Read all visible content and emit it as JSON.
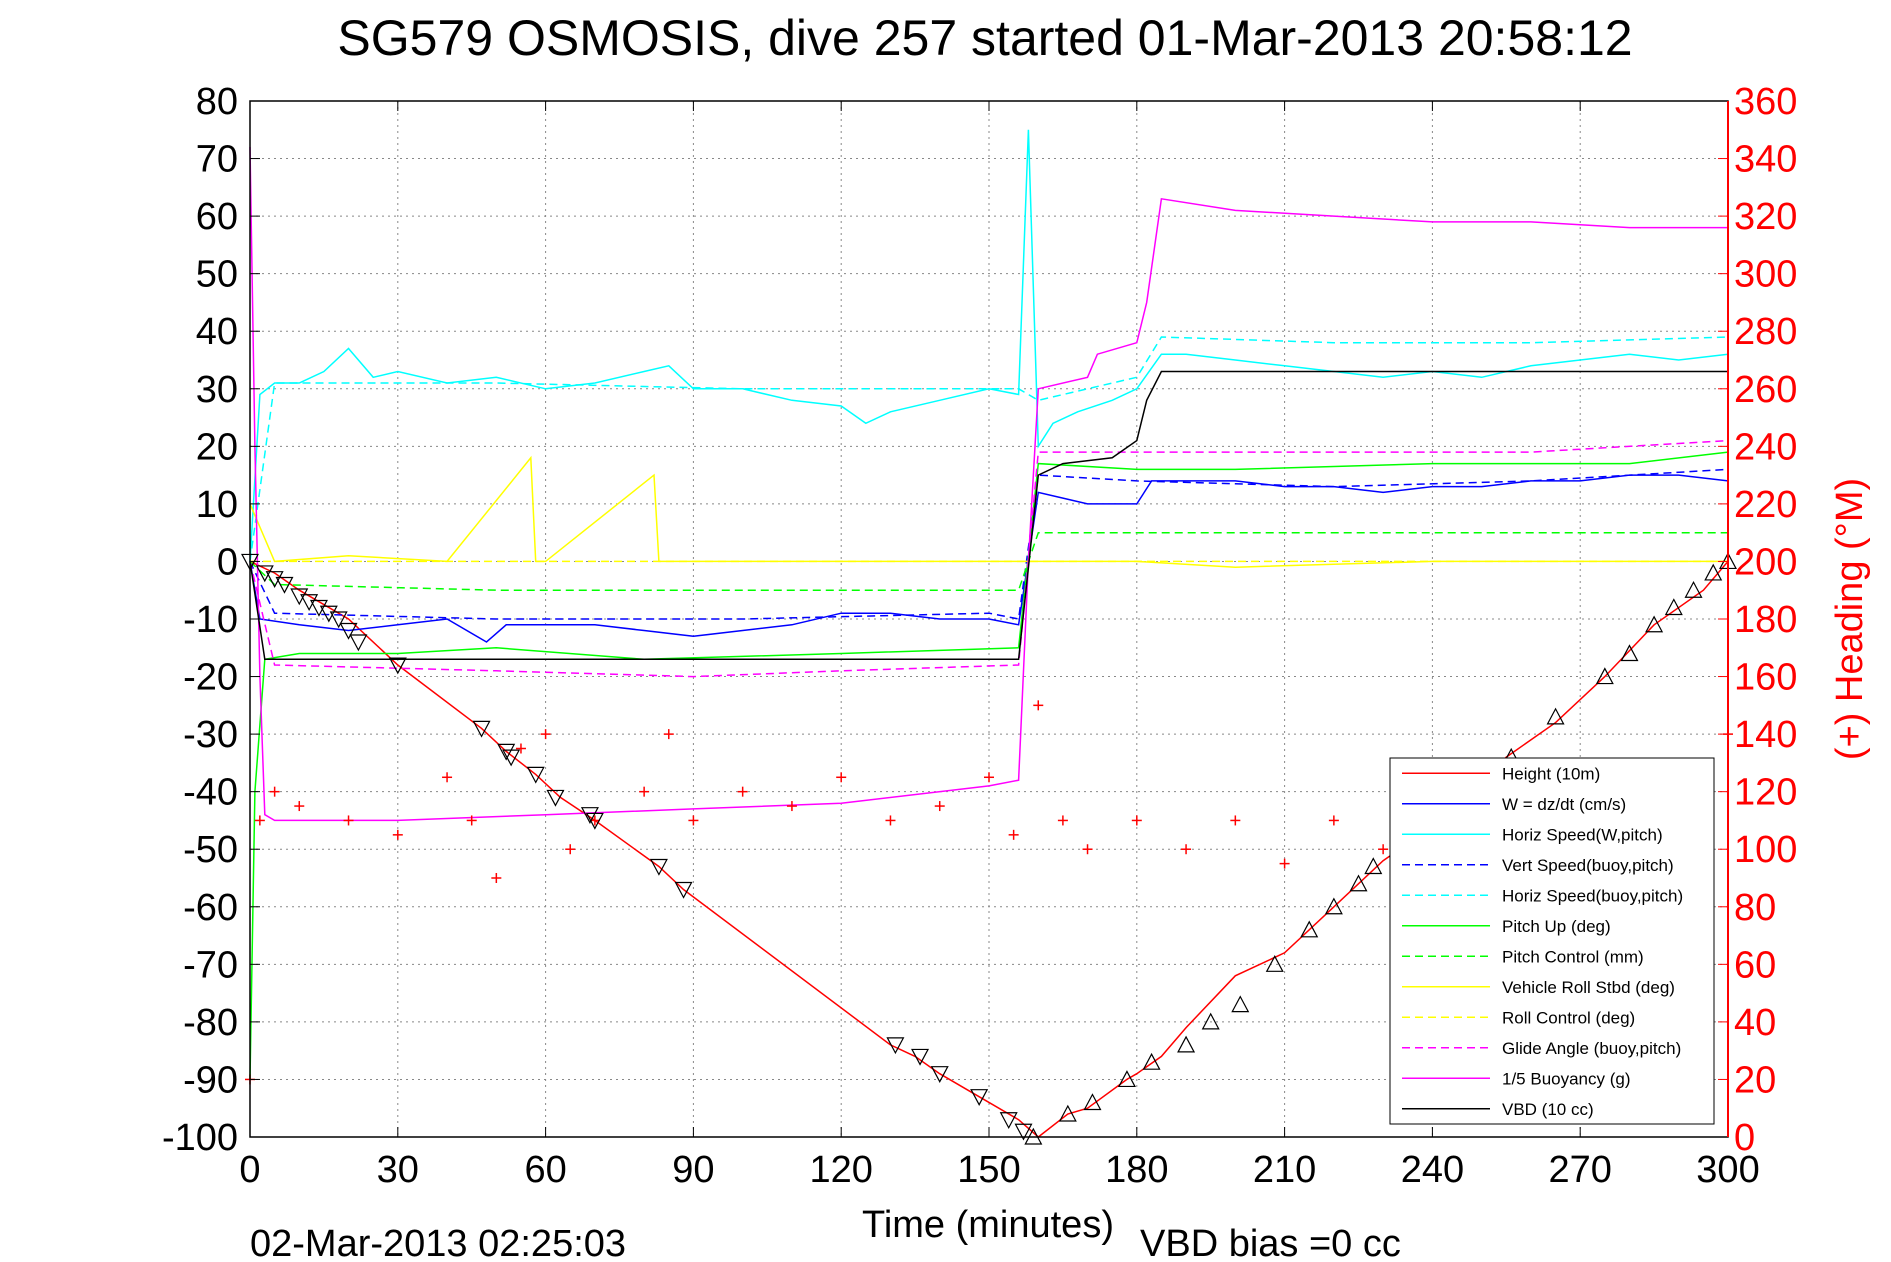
{
  "chart_data": {
    "type": "line",
    "title": "SG579 OSMOSIS, dive 257 started 01-Mar-2013 20:58:12",
    "xlabel": "Time (minutes)",
    "ylabel_right": "(+) Heading (°M)",
    "footer_left": "02-Mar-2013 02:25:03",
    "footer_right": "VBD bias =0 cc",
    "xlim": [
      0,
      300
    ],
    "ylim": [
      -100,
      80
    ],
    "ylim_right": [
      0,
      360
    ],
    "xticks": [
      0,
      30,
      60,
      90,
      120,
      150,
      180,
      210,
      240,
      270,
      300
    ],
    "yticks": [
      -100,
      -90,
      -80,
      -70,
      -60,
      -50,
      -40,
      -30,
      -20,
      -10,
      0,
      10,
      20,
      30,
      40,
      50,
      60,
      70,
      80
    ],
    "yticks_right": [
      0,
      20,
      40,
      60,
      80,
      100,
      120,
      140,
      160,
      180,
      200,
      220,
      240,
      260,
      280,
      300,
      320,
      340,
      360
    ],
    "grid": true,
    "legend_position": "lower-right",
    "series": [
      {
        "name": "Height (10m)",
        "color": "#ff0000",
        "style": "solid",
        "x": [
          0,
          5,
          10,
          20,
          30,
          47,
          52,
          58,
          63,
          70,
          83,
          88,
          130,
          135,
          140,
          148,
          156,
          160,
          166,
          170,
          178,
          180,
          185,
          190,
          200,
          210,
          220,
          230,
          240,
          255,
          265,
          275,
          285,
          295,
          300
        ],
        "y": [
          0,
          -2,
          -5,
          -10,
          -18,
          -29,
          -33,
          -37,
          -41,
          -45,
          -53,
          -57,
          -84,
          -86,
          -89,
          -93,
          -97,
          -100,
          -96,
          -95,
          -90,
          -89,
          -86,
          -81,
          -72,
          -68,
          -60,
          -52,
          -46,
          -34,
          -28,
          -20,
          -11,
          -5,
          0
        ]
      },
      {
        "name": "W = dz/dt (cm/s)",
        "color": "#0000ff",
        "style": "solid",
        "x": [
          0,
          2,
          10,
          20,
          30,
          40,
          48,
          52,
          60,
          70,
          80,
          90,
          100,
          110,
          120,
          130,
          140,
          150,
          156,
          160,
          165,
          170,
          180,
          183,
          190,
          200,
          210,
          220,
          230,
          240,
          250,
          260,
          270,
          280,
          290,
          300
        ],
        "y": [
          0,
          -10,
          -11,
          -12,
          -11,
          -10,
          -14,
          -11,
          -11,
          -11,
          -12,
          -13,
          -12,
          -11,
          -9,
          -9,
          -10,
          -10,
          -11,
          12,
          11,
          10,
          10,
          14,
          14,
          14,
          13,
          13,
          12,
          13,
          13,
          14,
          14,
          15,
          15,
          14
        ]
      },
      {
        "name": "Horiz Speed(W,pitch)",
        "color": "#00ffff",
        "style": "solid",
        "x": [
          0,
          2,
          5,
          10,
          15,
          20,
          25,
          30,
          40,
          50,
          60,
          70,
          80,
          85,
          90,
          100,
          110,
          120,
          125,
          130,
          140,
          150,
          156,
          158,
          160,
          163,
          168,
          175,
          180,
          185,
          190,
          200,
          210,
          220,
          230,
          240,
          250,
          260,
          270,
          280,
          290,
          300
        ],
        "y": [
          0,
          29,
          31,
          31,
          33,
          37,
          32,
          33,
          31,
          32,
          30,
          31,
          33,
          34,
          30,
          30,
          28,
          27,
          24,
          26,
          28,
          30,
          29,
          75,
          20,
          24,
          26,
          28,
          30,
          36,
          36,
          35,
          34,
          33,
          32,
          33,
          32,
          34,
          35,
          36,
          35,
          36
        ]
      },
      {
        "name": "Vert Speed(buoy,pitch)",
        "color": "#0000ff",
        "style": "dashed",
        "x": [
          0,
          5,
          50,
          100,
          150,
          156,
          160,
          180,
          220,
          260,
          300
        ],
        "y": [
          0,
          -9,
          -10,
          -10,
          -9,
          -10,
          15,
          14,
          13,
          14,
          16
        ]
      },
      {
        "name": "Horiz Speed(buoy,pitch)",
        "color": "#00ffff",
        "style": "dashed",
        "x": [
          0,
          5,
          50,
          100,
          150,
          156,
          160,
          180,
          185,
          220,
          260,
          300
        ],
        "y": [
          0,
          31,
          31,
          30,
          30,
          30,
          28,
          32,
          39,
          38,
          38,
          39
        ]
      },
      {
        "name": "Pitch Up (deg)",
        "color": "#00ff00",
        "style": "solid",
        "x": [
          0,
          1,
          3,
          10,
          30,
          50,
          80,
          120,
          156,
          160,
          180,
          200,
          240,
          280,
          300
        ],
        "y": [
          -90,
          -40,
          -17,
          -16,
          -16,
          -15,
          -17,
          -16,
          -15,
          17,
          16,
          16,
          17,
          17,
          19
        ]
      },
      {
        "name": "Pitch Control (mm)",
        "color": "#00ff00",
        "style": "dashed",
        "x": [
          0,
          5,
          50,
          100,
          156,
          160,
          180,
          200,
          240,
          300
        ],
        "y": [
          0,
          -4,
          -5,
          -5,
          -5,
          5,
          5,
          5,
          5,
          5
        ]
      },
      {
        "name": "Vehicle Roll Stbd (deg)",
        "color": "#ffff00",
        "style": "solid",
        "x": [
          0,
          5,
          20,
          40,
          57,
          58,
          59,
          60,
          82,
          83,
          84,
          90,
          120,
          156,
          160,
          180,
          200,
          240,
          280,
          300
        ],
        "y": [
          10,
          0,
          1,
          0,
          18,
          0,
          0,
          0,
          15,
          0,
          0,
          0,
          0,
          0,
          0,
          0,
          -1,
          0,
          0,
          0
        ]
      },
      {
        "name": "Roll Control (deg)",
        "color": "#ffff00",
        "style": "dashed",
        "x": [
          0,
          156,
          160,
          300
        ],
        "y": [
          0,
          0,
          0,
          0
        ]
      },
      {
        "name": "Glide Angle (buoy,pitch)",
        "color": "#ff00ff",
        "style": "dashed",
        "x": [
          0,
          5,
          50,
          90,
          120,
          156,
          160,
          180,
          220,
          260,
          300
        ],
        "y": [
          0,
          -18,
          -19,
          -20,
          -19,
          -18,
          19,
          19,
          19,
          19,
          21
        ]
      },
      {
        "name": "1/5 Buoyancy (g)",
        "color": "#ff00ff",
        "style": "solid",
        "x": [
          0,
          1,
          2,
          3,
          5,
          30,
          60,
          90,
          120,
          150,
          156,
          158,
          160,
          170,
          172,
          180,
          182,
          185,
          200,
          220,
          240,
          260,
          280,
          300
        ],
        "y": [
          72,
          20,
          -20,
          -44,
          -45,
          -45,
          -44,
          -43,
          -42,
          -39,
          -38,
          0,
          30,
          32,
          36,
          38,
          45,
          63,
          61,
          60,
          59,
          59,
          58,
          58
        ]
      },
      {
        "name": "VBD (10 cc)",
        "color": "#000000",
        "style": "solid",
        "x": [
          0,
          3,
          10,
          156,
          160,
          165,
          175,
          180,
          182,
          185,
          200,
          240,
          280,
          300
        ],
        "y": [
          0,
          -17,
          -17,
          -17,
          15,
          17,
          18,
          21,
          28,
          33,
          33,
          33,
          33,
          33
        ]
      }
    ],
    "heading": {
      "name": "Heading",
      "axis": "right",
      "color": "#ff0000",
      "marker": "+",
      "x": [
        0,
        2,
        5,
        10,
        20,
        30,
        40,
        45,
        50,
        55,
        60,
        65,
        70,
        80,
        85,
        90,
        100,
        110,
        120,
        130,
        140,
        150,
        155,
        160,
        165,
        170,
        180,
        190,
        200,
        210,
        220,
        230,
        240,
        250,
        260,
        270,
        280,
        290,
        296,
        300
      ],
      "y": [
        20,
        110,
        120,
        115,
        110,
        105,
        125,
        110,
        90,
        135,
        140,
        100,
        110,
        120,
        140,
        110,
        120,
        115,
        125,
        110,
        115,
        125,
        105,
        150,
        110,
        100,
        110,
        100,
        110,
        95,
        110,
        100,
        115,
        110,
        100,
        110,
        105,
        100,
        110,
        140
      ]
    },
    "vbd_markers": {
      "name": "Height (10m)",
      "color": "#000000",
      "x": [
        0,
        3,
        5,
        7,
        10,
        12,
        14,
        16,
        18,
        20,
        22,
        30,
        47,
        52,
        53,
        58,
        62,
        69,
        70,
        83,
        88,
        131,
        136,
        140,
        148,
        154,
        157,
        159,
        166,
        171,
        178,
        183,
        190,
        195,
        201,
        208,
        215,
        220,
        225,
        228,
        233,
        240,
        250,
        256,
        265,
        275,
        280,
        285,
        289,
        293,
        297,
        300
      ],
      "y": [
        0,
        -2,
        -3,
        -4,
        -6,
        -7,
        -8,
        -9,
        -10,
        -12,
        -14,
        -18,
        -29,
        -33,
        -34,
        -37,
        -41,
        -44,
        -45,
        -53,
        -57,
        -84,
        -86,
        -89,
        -93,
        -97,
        -99,
        -100,
        -96,
        -94,
        -90,
        -87,
        -84,
        -80,
        -77,
        -70,
        -64,
        -60,
        -56,
        -53,
        -50,
        -47,
        -40,
        -34,
        -27,
        -20,
        -16,
        -11,
        -8,
        -5,
        -2,
        0
      ]
    }
  }
}
